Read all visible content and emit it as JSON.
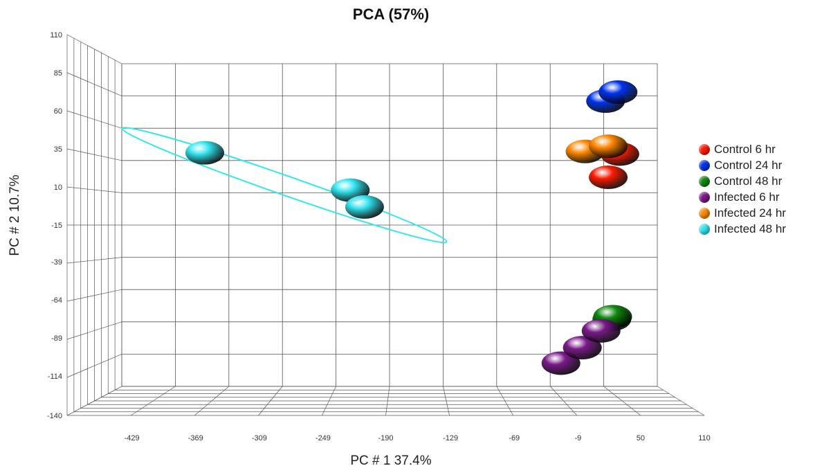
{
  "chart_data": {
    "type": "scatter",
    "title": "PCA (57%)",
    "xlabel": "PC # 1 37.4%",
    "ylabel": "PC # 2 10.7%",
    "xlim": [
      -490,
      110
    ],
    "ylim": [
      -140,
      110
    ],
    "x_ticks": [
      "-429",
      "-369",
      "-309",
      "-249",
      "-190",
      "-129",
      "-69",
      "-9",
      "50",
      "110"
    ],
    "y_ticks": [
      "110",
      "85",
      "60",
      "35",
      "10",
      "-15",
      "-39",
      "-64",
      "-89",
      "-114",
      "-140"
    ],
    "grid": true,
    "legend_position": "right",
    "series": [
      {
        "name": "Control 6 hr",
        "color": "#ff1a00",
        "points": [
          [
            68,
            40
          ],
          [
            55,
            22
          ]
        ]
      },
      {
        "name": "Control 24 hr",
        "color": "#0033ee",
        "points": [
          [
            52,
            81
          ],
          [
            66,
            88
          ]
        ]
      },
      {
        "name": "Control 48 hr",
        "color": "#118811",
        "points": [
          [
            59,
            -88
          ],
          [
            60,
            -86
          ]
        ]
      },
      {
        "name": "Infected 6 hr",
        "color": "#7a1a8a",
        "points": [
          [
            2,
            -122
          ],
          [
            26,
            -110
          ],
          [
            47,
            -97
          ]
        ]
      },
      {
        "name": "Infected 24 hr",
        "color": "#ff8800",
        "points": [
          [
            29,
            42
          ],
          [
            55,
            46
          ]
        ]
      },
      {
        "name": "Infected 48 hr",
        "color": "#33e5f0",
        "points": [
          [
            -397,
            41
          ],
          [
            -234,
            12
          ],
          [
            -218,
            -1
          ]
        ]
      }
    ]
  }
}
